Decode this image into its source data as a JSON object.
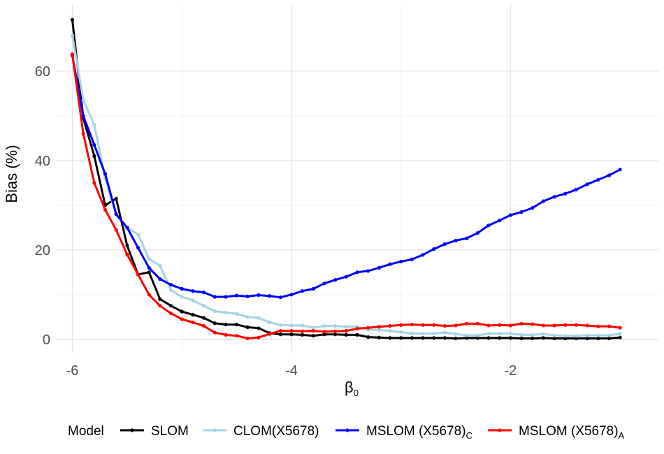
{
  "chart_data": {
    "type": "line",
    "xlabel": "β",
    "xlabel_subscript": "0",
    "ylabel": "Bias (%)",
    "xlim": [
      -6.15,
      -0.65
    ],
    "ylim": [
      -3,
      75
    ],
    "x_ticks": [
      -6,
      -4,
      -2
    ],
    "x_tick_labels": [
      "-6",
      "-4",
      "-2"
    ],
    "y_ticks": [
      0,
      20,
      40,
      60
    ],
    "y_tick_labels": [
      "0",
      "20",
      "40",
      "60"
    ],
    "grid": true,
    "legend": {
      "title": "Model",
      "position": "bottom",
      "entries": [
        {
          "name": "SLOM",
          "subscript": ""
        },
        {
          "name": "CLOM(X5678)",
          "subscript": ""
        },
        {
          "name": "MSLOM (X5678)",
          "subscript": "C"
        },
        {
          "name": "MSLOM (X5678)",
          "subscript": "A"
        }
      ]
    },
    "series": [
      {
        "name": "SLOM",
        "color": "#000000",
        "x": [
          -6.0,
          -5.9,
          -5.8,
          -5.7,
          -5.6,
          -5.5,
          -5.4,
          -5.3,
          -5.2,
          -5.1,
          -5.0,
          -4.9,
          -4.8,
          -4.7,
          -4.6,
          -4.5,
          -4.4,
          -4.3,
          -4.2,
          -4.1,
          -4.0,
          -3.9,
          -3.8,
          -3.7,
          -3.6,
          -3.5,
          -3.4,
          -3.3,
          -3.2,
          -3.1,
          -3.0,
          -2.9,
          -2.8,
          -2.7,
          -2.6,
          -2.5,
          -2.4,
          -2.3,
          -2.2,
          -2.1,
          -2.0,
          -1.9,
          -1.8,
          -1.7,
          -1.6,
          -1.5,
          -1.4,
          -1.3,
          -1.2,
          -1.1,
          -1.0
        ],
        "y": [
          71.5,
          49.5,
          41,
          30,
          31.5,
          21,
          14.5,
          15,
          9,
          7.5,
          6.2,
          5.5,
          4.8,
          3.6,
          3.3,
          3.3,
          2.7,
          2.5,
          1.4,
          1.1,
          1.1,
          1.0,
          0.8,
          1.1,
          1.1,
          1.0,
          1.0,
          0.5,
          0.4,
          0.3,
          0.3,
          0.3,
          0.3,
          0.3,
          0.3,
          0.2,
          0.3,
          0.3,
          0.3,
          0.3,
          0.3,
          0.2,
          0.2,
          0.3,
          0.2,
          0.2,
          0.2,
          0.2,
          0.2,
          0.2,
          0.4
        ]
      },
      {
        "name": "CLOM(X5678)",
        "color": "#a6d4e2",
        "x": [
          -6.0,
          -5.9,
          -5.8,
          -5.7,
          -5.6,
          -5.5,
          -5.4,
          -5.3,
          -5.2,
          -5.1,
          -5.0,
          -4.9,
          -4.8,
          -4.7,
          -4.6,
          -4.5,
          -4.4,
          -4.3,
          -4.2,
          -4.1,
          -4.0,
          -3.9,
          -3.8,
          -3.7,
          -3.6,
          -3.5,
          -3.4,
          -3.3,
          -3.2,
          -3.1,
          -3.0,
          -2.9,
          -2.8,
          -2.7,
          -2.6,
          -2.5,
          -2.4,
          -2.3,
          -2.2,
          -2.1,
          -2.0,
          -1.9,
          -1.8,
          -1.7,
          -1.6,
          -1.5,
          -1.4,
          -1.3,
          -1.2,
          -1.1,
          -1.0
        ],
        "y": [
          68,
          53.5,
          48,
          36,
          28,
          25,
          23.5,
          18,
          16.5,
          11,
          9.5,
          8.7,
          7.5,
          6.3,
          6,
          5.7,
          5,
          4.8,
          3.8,
          3.2,
          3.1,
          3.1,
          2.6,
          3,
          3,
          2.8,
          2.8,
          2.2,
          2.1,
          1.9,
          1.6,
          1.3,
          1.3,
          1.3,
          1.5,
          1.2,
          0.9,
          0.9,
          1.3,
          1.3,
          1.3,
          1.0,
          1.0,
          1.2,
          0.9,
          0.8,
          0.8,
          0.9,
          0.9,
          0.9,
          1.3
        ]
      },
      {
        "name": "MSLOM (X5678)C",
        "color": "#0000ff",
        "x": [
          -6.0,
          -5.9,
          -5.8,
          -5.7,
          -5.6,
          -5.5,
          -5.4,
          -5.3,
          -5.2,
          -5.1,
          -5.0,
          -4.9,
          -4.8,
          -4.7,
          -4.6,
          -4.5,
          -4.4,
          -4.3,
          -4.2,
          -4.1,
          -4.0,
          -3.9,
          -3.8,
          -3.7,
          -3.6,
          -3.5,
          -3.4,
          -3.3,
          -3.2,
          -3.1,
          -3.0,
          -2.9,
          -2.8,
          -2.7,
          -2.6,
          -2.5,
          -2.4,
          -2.3,
          -2.2,
          -2.1,
          -2.0,
          -1.9,
          -1.8,
          -1.7,
          -1.6,
          -1.5,
          -1.4,
          -1.3,
          -1.2,
          -1.1,
          -1.0
        ],
        "y": [
          63.5,
          50,
          43.5,
          37,
          28,
          25,
          20.5,
          16,
          13.5,
          12.2,
          11.3,
          10.8,
          10.5,
          9.5,
          9.5,
          9.8,
          9.6,
          9.9,
          9.7,
          9.4,
          10,
          10.8,
          11.3,
          12.5,
          13.3,
          14,
          15,
          15.3,
          16,
          16.8,
          17.4,
          17.9,
          18.9,
          20.2,
          21.3,
          22.1,
          22.6,
          23.8,
          25.5,
          26.6,
          27.8,
          28.5,
          29.4,
          30.9,
          31.9,
          32.6,
          33.5,
          34.7,
          35.7,
          36.7,
          38
        ]
      },
      {
        "name": "MSLOM (X5678)A",
        "color": "#ff0000",
        "x": [
          -6.0,
          -5.9,
          -5.8,
          -5.7,
          -5.6,
          -5.5,
          -5.4,
          -5.3,
          -5.2,
          -5.1,
          -5.0,
          -4.9,
          -4.8,
          -4.7,
          -4.6,
          -4.5,
          -4.4,
          -4.3,
          -4.2,
          -4.1,
          -4.0,
          -3.9,
          -3.8,
          -3.7,
          -3.6,
          -3.5,
          -3.4,
          -3.3,
          -3.2,
          -3.1,
          -3.0,
          -2.9,
          -2.8,
          -2.7,
          -2.6,
          -2.5,
          -2.4,
          -2.3,
          -2.2,
          -2.1,
          -2.0,
          -1.9,
          -1.8,
          -1.7,
          -1.6,
          -1.5,
          -1.4,
          -1.3,
          -1.2,
          -1.1,
          -1.0
        ],
        "y": [
          63.8,
          46,
          35,
          29,
          24.5,
          19,
          14.5,
          10,
          7.5,
          5.8,
          4.5,
          3.8,
          3,
          1.5,
          1.0,
          0.8,
          0.2,
          0.4,
          1.2,
          1.9,
          1.9,
          1.8,
          1.9,
          1.7,
          1.8,
          1.9,
          2.4,
          2.6,
          2.8,
          3.0,
          3.2,
          3.3,
          3.2,
          3.2,
          3.0,
          3.1,
          3.5,
          3.5,
          3.1,
          3.2,
          3.1,
          3.5,
          3.4,
          3.1,
          3.1,
          3.2,
          3.2,
          3.1,
          2.9,
          2.9,
          2.6
        ]
      }
    ]
  }
}
